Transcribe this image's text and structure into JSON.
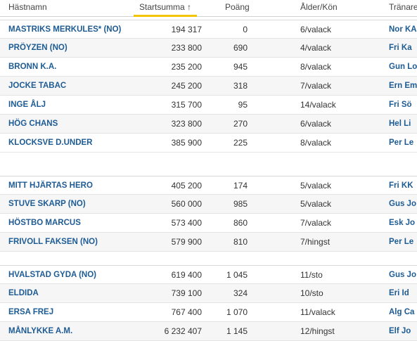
{
  "table": {
    "header": [
      "Hästnamn",
      "Startsumma ↑",
      "Poäng",
      "Ålder/Kön",
      "Tränare"
    ],
    "groups": [
      [
        [
          "MASTRIKS MERKULES* (NO)",
          "194 317",
          "0",
          "6/valack",
          "Nor KA"
        ],
        [
          "PRÖYZEN (NO)",
          "233 800",
          "690",
          "4/valack",
          "Fri Ka"
        ],
        [
          "BRONN K.A.",
          "235 200",
          "945",
          "8/valack",
          "Gun Lo"
        ],
        [
          "JOCKE TABAC",
          "245 200",
          "318",
          "7/valack",
          "Ern Em"
        ],
        [
          "INGE ÅLJ",
          "315 700",
          "95",
          "14/valack",
          "Fri Sö"
        ],
        [
          "HÖG CHANS",
          "323 800",
          "270",
          "6/valack",
          "Hel Li"
        ],
        [
          "KLOCKSVE D.UNDER",
          "385 900",
          "225",
          "8/valack",
          "Per Le"
        ]
      ],
      [
        [
          "MITT HJÄRTAS HERO",
          "405 200",
          "174",
          "5/valack",
          "Fri KK"
        ],
        [
          "STUVE SKARP (NO)",
          "560 000",
          "985",
          "5/valack",
          "Gus Jo"
        ],
        [
          "HÖSTBO MARCUS",
          "573 400",
          "860",
          "7/valack",
          "Esk Jo"
        ],
        [
          "FRIVOLL FAKSEN (NO)",
          "579 900",
          "810",
          "7/hingst",
          "Per Le"
        ]
      ],
      [
        [
          "HVALSTAD GYDA (NO)",
          "619 400",
          "1 045",
          "11/sto",
          "Gus Jo"
        ],
        [
          "ELDIDA",
          "739 100",
          "324",
          "10/sto",
          "Eri Id"
        ],
        [
          "ERSA FREJ",
          "767 400",
          "1 070",
          "11/valack",
          "Alg Ca"
        ],
        [
          "MÅNLYKKE A.M.",
          "6 232 407",
          "1 145",
          "12/hingst",
          "Elf Jo"
        ]
      ]
    ]
  }
}
